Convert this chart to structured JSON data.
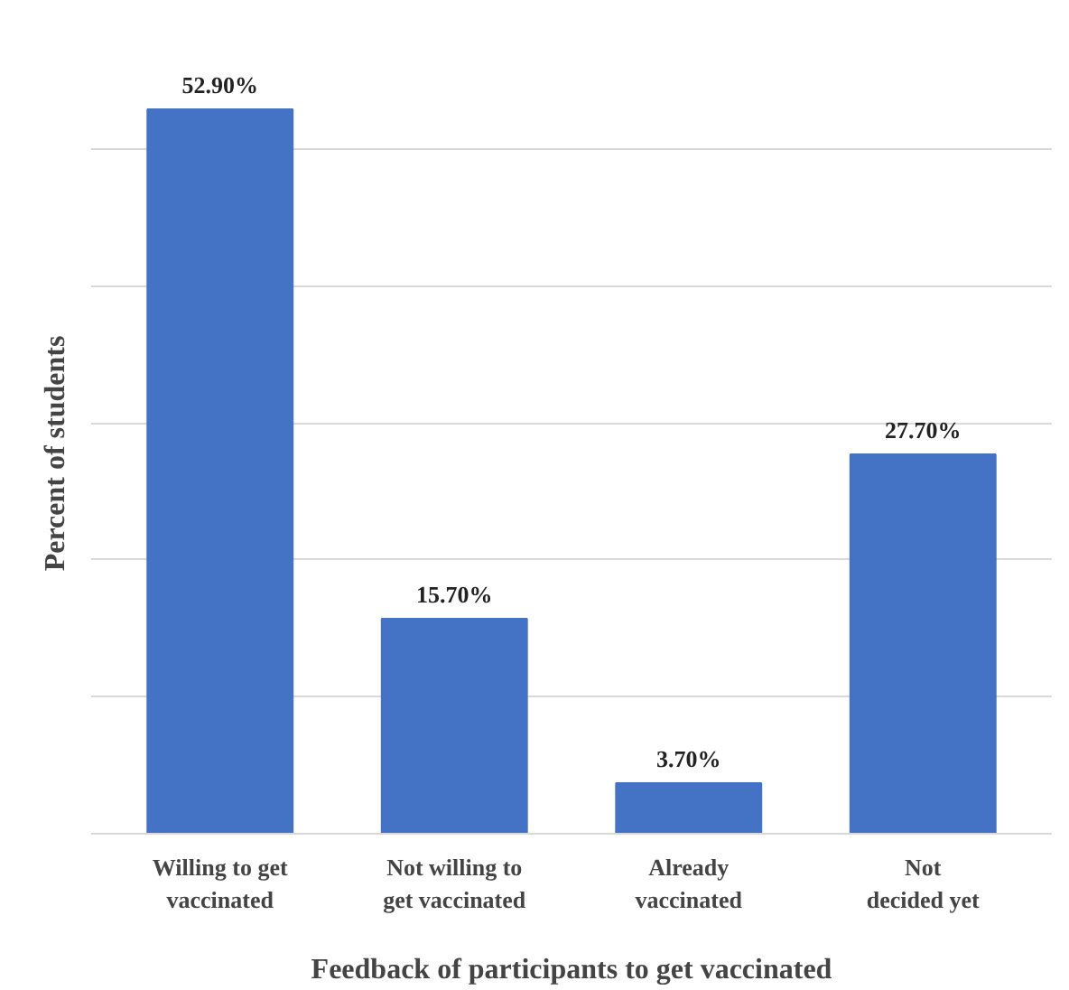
{
  "chart_data": {
    "type": "bar",
    "xlabel": "Feedback of participants to get vaccinated",
    "ylabel": "Percent of students",
    "categories": [
      "Willing to get\nvaccinated",
      "Not willing to\nget vaccinated",
      "Already\nvaccinated",
      "Not\ndecided yet"
    ],
    "values": [
      52.9,
      15.7,
      3.7,
      27.7
    ],
    "value_labels": [
      "52.90%",
      "15.70%",
      "3.70%",
      "27.70%"
    ],
    "color": "#4472c4",
    "yticks": [
      {
        "value": 0,
        "label": null
      },
      {
        "value": 10,
        "label": null
      },
      {
        "value": 20,
        "label": null
      },
      {
        "value": 30,
        "label": null
      },
      {
        "value": 40,
        "label": null
      },
      {
        "value": 50,
        "label": null
      }
    ],
    "grid": "y",
    "tick_labels": "x"
  }
}
